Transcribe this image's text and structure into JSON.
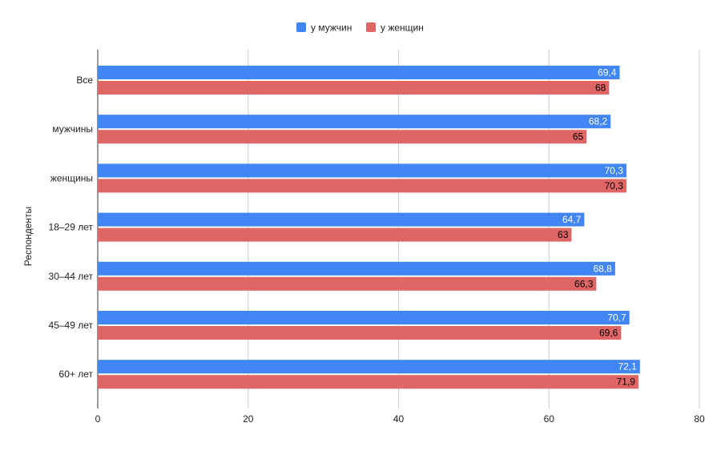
{
  "chart_data": {
    "type": "bar",
    "orientation": "horizontal",
    "title": "",
    "xlabel": "",
    "ylabel": "Респонденты",
    "xlim": [
      0,
      80
    ],
    "x_ticks": [
      0,
      20,
      40,
      60,
      80
    ],
    "grid": true,
    "legend_position": "top-center",
    "categories": [
      "Все",
      "мужчины",
      "женщины",
      "18–29 лет",
      "30–44 лет",
      "45–49 лет",
      "60+ лет"
    ],
    "series": [
      {
        "name": "у мужчин",
        "color": "#4285f4",
        "label_color": "#ffffff",
        "values": [
          69.4,
          68.2,
          70.3,
          64.7,
          68.8,
          70.7,
          72.1
        ],
        "labels": [
          "69,4",
          "68,2",
          "70,3",
          "64,7",
          "68,8",
          "70,7",
          "72,1"
        ]
      },
      {
        "name": "у женщин",
        "color": "#e06666",
        "label_color": "#000000",
        "values": [
          68,
          65,
          70.3,
          63,
          66.3,
          69.6,
          71.9
        ],
        "labels": [
          "68",
          "65",
          "70,3",
          "63",
          "66,3",
          "69,6",
          "71,9"
        ]
      }
    ]
  }
}
